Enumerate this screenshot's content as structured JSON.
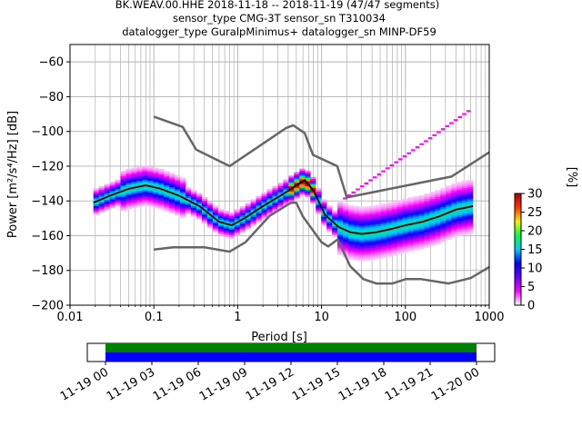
{
  "chart_data": [
    {
      "type": "heatmap",
      "title_lines": [
        "BK.WEAV.00.HHE   2018-11-18 -- 2018-11-19  (47/47 segments)",
        "sensor_type CMG-3T sensor_sn T310034",
        "datalogger_type GuralpMinimus+ datalogger_sn MINP-DF59"
      ],
      "xlabel": "Period [s]",
      "ylabel": "Power [m²/s⁴/Hz] [dB]",
      "xscale": "log",
      "xlim": [
        0.01,
        1000
      ],
      "ylim": [
        -200,
        -50
      ],
      "x_ticks": [
        0.01,
        0.1,
        1,
        10,
        100,
        1000
      ],
      "x_tick_labels": [
        "0.01",
        "0.1",
        "1",
        "10",
        "100",
        "1000"
      ],
      "y_ticks": [
        -200,
        -180,
        -160,
        -140,
        -120,
        -100,
        -80,
        -60
      ],
      "y_tick_labels": [
        "−200",
        "−180",
        "−160",
        "−140",
        "−120",
        "−100",
        "−80",
        "−60"
      ],
      "grid": true,
      "colorbar": {
        "label": "[%]",
        "range": [
          0,
          30
        ],
        "ticks": [
          0,
          5,
          10,
          15,
          20,
          25,
          30
        ],
        "tick_labels": [
          "0",
          "5",
          "10",
          "15",
          "20",
          "25",
          "30"
        ],
        "colors": [
          "#ffffff",
          "#ff00ff",
          "#6a00ff",
          "#0000ff",
          "#00c8ff",
          "#00ff40",
          "#ffee00",
          "#ff3300",
          "#b40000"
        ]
      },
      "series": [
        {
          "role": "mode",
          "color": "#000000",
          "x": [
            0.019,
            0.03,
            0.05,
            0.08,
            0.12,
            0.2,
            0.35,
            0.6,
            0.85,
            1.2,
            2,
            3.5,
            5,
            6.3,
            8,
            11,
            16,
            22,
            30,
            45,
            70,
            100,
            160,
            250,
            400,
            640
          ],
          "y": [
            -141,
            -137,
            -133,
            -131,
            -133,
            -137,
            -143,
            -152,
            -154,
            -150,
            -143,
            -136,
            -131,
            -128,
            -134,
            -148,
            -155,
            -158,
            -159,
            -158,
            -156,
            -154,
            -152,
            -149,
            -145,
            -143
          ]
        },
        {
          "role": "high noise model",
          "color": "#666666",
          "x": [
            0.1,
            0.22,
            0.32,
            0.8,
            3.8,
            4.6,
            6.3,
            7.9,
            15.4,
            20,
            354,
            1000
          ],
          "y": [
            -91.5,
            -97.4,
            -110.5,
            -120,
            -98,
            -96.5,
            -101,
            -113.5,
            -120,
            -138,
            -126,
            -112
          ]
        },
        {
          "role": "low noise model",
          "color": "#666666",
          "x": [
            0.1,
            0.17,
            0.4,
            0.8,
            1.24,
            2.4,
            4.3,
            5,
            6,
            10,
            12,
            15.6,
            21.9,
            31.6,
            45,
            70,
            101,
            154,
            328,
            600,
            1000
          ],
          "y": [
            -168,
            -166.7,
            -166.7,
            -169.2,
            -163.7,
            -148.6,
            -141.1,
            -141.1,
            -149,
            -163.8,
            -166.2,
            -162.1,
            -177.5,
            -185,
            -187.5,
            -187.5,
            -185,
            -185,
            -187.5,
            -184.4,
            -178
          ]
        }
      ]
    },
    {
      "type": "timeline",
      "x_ticks": [
        "11-19 00",
        "11-19 03",
        "11-19 06",
        "11-19 09",
        "11-19 12",
        "11-19 15",
        "11-19 18",
        "11-19 21",
        "11-20 00"
      ],
      "bars": [
        {
          "color": "#008000",
          "start": "11-19 00",
          "end": "11-20 00"
        },
        {
          "color": "#0000ff",
          "start": "11-19 00",
          "end": "11-20 00"
        }
      ]
    }
  ]
}
